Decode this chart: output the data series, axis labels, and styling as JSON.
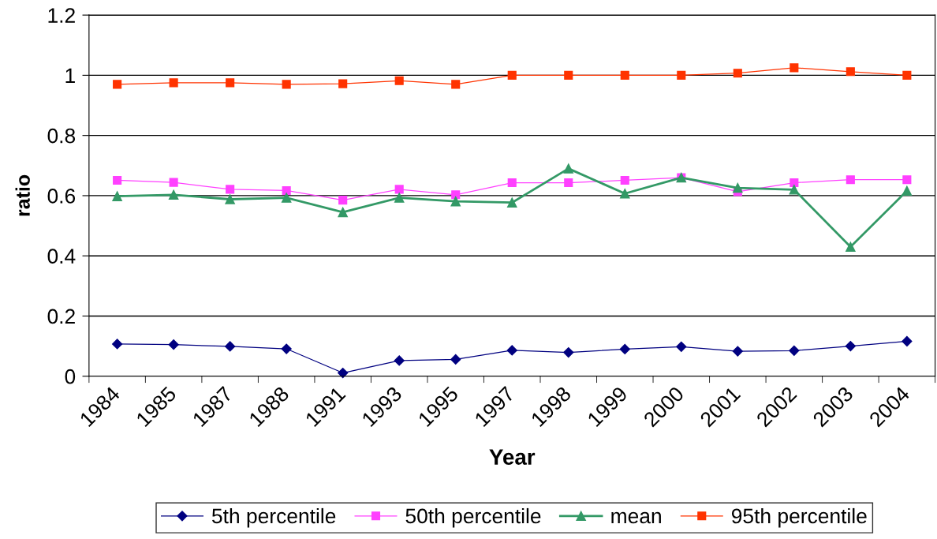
{
  "chart_data": {
    "type": "line",
    "xlabel": "Year",
    "ylabel": "ratio",
    "categories": [
      "1984",
      "1985",
      "1987",
      "1988",
      "1991",
      "1993",
      "1995",
      "1997",
      "1998",
      "1999",
      "2000",
      "2001",
      "2002",
      "2003",
      "2004"
    ],
    "ylim": [
      0,
      1.2
    ],
    "yticks": [
      0,
      0.2,
      0.4,
      0.6,
      0.8,
      1,
      1.2
    ],
    "grid": "y",
    "legend": "bottom",
    "series": [
      {
        "name": "5th percentile",
        "color": "#000080",
        "marker": "diamond",
        "values": [
          0.107,
          0.105,
          0.099,
          0.091,
          0.011,
          0.052,
          0.056,
          0.086,
          0.079,
          0.09,
          0.098,
          0.083,
          0.085,
          0.1,
          0.116
        ]
      },
      {
        "name": "50th percentile",
        "color": "#ff40ff",
        "marker": "square",
        "values": [
          0.651,
          0.644,
          0.621,
          0.617,
          0.585,
          0.621,
          0.603,
          0.643,
          0.643,
          0.651,
          0.66,
          0.613,
          0.643,
          0.653,
          0.653
        ]
      },
      {
        "name": "mean",
        "color": "#339966",
        "marker": "triangle",
        "values": [
          0.598,
          0.603,
          0.588,
          0.593,
          0.545,
          0.593,
          0.581,
          0.577,
          0.69,
          0.607,
          0.66,
          0.626,
          0.62,
          0.43,
          0.616
        ]
      },
      {
        "name": "95th percentile",
        "color": "#ff3300",
        "marker": "square",
        "values": [
          0.97,
          0.975,
          0.975,
          0.97,
          0.972,
          0.982,
          0.97,
          1.0,
          1.0,
          1.0,
          1.0,
          1.007,
          1.025,
          1.012,
          1.0
        ]
      }
    ]
  }
}
